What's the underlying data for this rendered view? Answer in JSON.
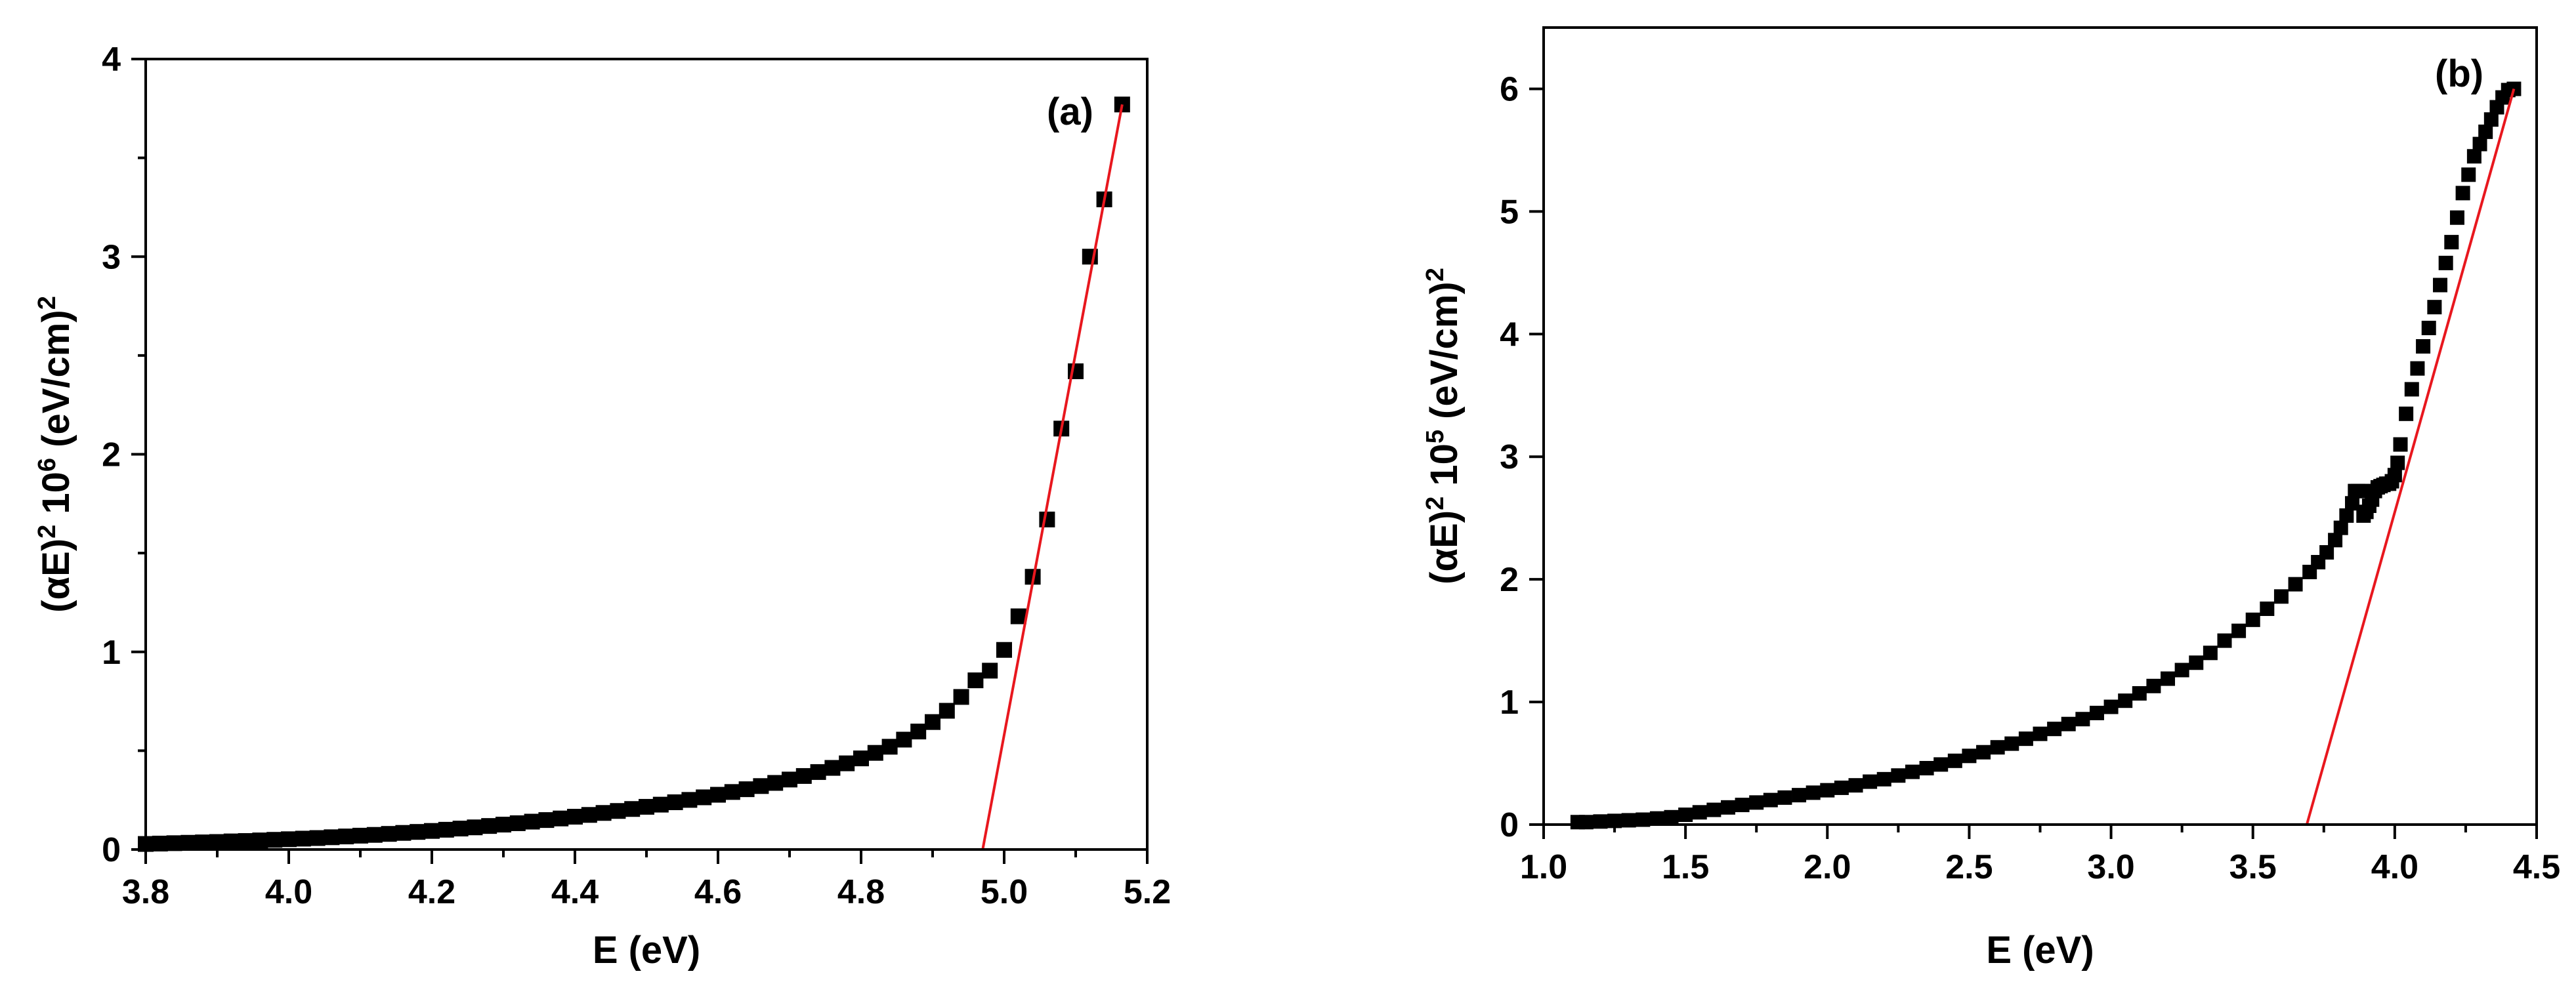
{
  "colors": {
    "marker": "#000000",
    "fit_line": "#e8171e",
    "axes": "#000000"
  },
  "chart_data": [
    {
      "type": "scatter",
      "panel_label": "(a)",
      "xlabel": "E (eV)",
      "ylabel_parts": [
        "(",
        "α",
        "E)",
        "2",
        " 10",
        "6",
        " (eV/cm)",
        "2"
      ],
      "xlim": [
        3.8,
        5.2
      ],
      "ylim": [
        0,
        4
      ],
      "xticks": [
        "3.8",
        "4.0",
        "4.2",
        "4.4",
        "4.6",
        "4.8",
        "5.0",
        "5.2"
      ],
      "yticks": [
        "0",
        "1",
        "2",
        "3",
        "4"
      ],
      "series": [
        {
          "name": "data",
          "x": [
            3.8,
            3.82,
            3.84,
            3.86,
            3.88,
            3.9,
            3.92,
            3.94,
            3.96,
            3.98,
            4.0,
            4.02,
            4.04,
            4.06,
            4.08,
            4.1,
            4.12,
            4.14,
            4.16,
            4.18,
            4.2,
            4.22,
            4.24,
            4.26,
            4.28,
            4.3,
            4.32,
            4.34,
            4.36,
            4.38,
            4.4,
            4.42,
            4.44,
            4.46,
            4.48,
            4.5,
            4.52,
            4.54,
            4.56,
            4.58,
            4.6,
            4.62,
            4.64,
            4.66,
            4.68,
            4.7,
            4.72,
            4.74,
            4.76,
            4.78,
            4.8,
            4.82,
            4.84,
            4.86,
            4.88,
            4.9,
            4.92,
            4.94,
            4.96,
            4.98,
            5.0,
            5.02,
            5.04,
            5.06,
            5.08,
            5.1,
            5.12,
            5.14,
            5.165
          ],
          "y": [
            0.028,
            0.03,
            0.032,
            0.034,
            0.036,
            0.038,
            0.041,
            0.043,
            0.046,
            0.049,
            0.052,
            0.055,
            0.058,
            0.062,
            0.066,
            0.07,
            0.074,
            0.079,
            0.084,
            0.089,
            0.094,
            0.1,
            0.106,
            0.112,
            0.119,
            0.126,
            0.133,
            0.141,
            0.149,
            0.157,
            0.166,
            0.175,
            0.185,
            0.195,
            0.205,
            0.216,
            0.227,
            0.239,
            0.251,
            0.264,
            0.277,
            0.291,
            0.305,
            0.321,
            0.337,
            0.354,
            0.372,
            0.392,
            0.413,
            0.436,
            0.461,
            0.489,
            0.52,
            0.556,
            0.597,
            0.645,
            0.702,
            0.772,
            0.856,
            0.905,
            1.01,
            1.18,
            1.38,
            1.67,
            2.13,
            2.42,
            3.0,
            3.29,
            3.77
          ]
        },
        {
          "name": "linear fit",
          "x": [
            4.97,
            5.165
          ],
          "y": [
            0,
            3.77
          ]
        }
      ]
    },
    {
      "type": "scatter",
      "panel_label": "(b)",
      "xlabel": "E (eV)",
      "ylabel_parts": [
        "(",
        "α",
        "E)",
        "2",
        " 10",
        "5",
        " (eV/cm)",
        "2"
      ],
      "xlim": [
        1.0,
        4.5
      ],
      "ylim": [
        0,
        6.5
      ],
      "xticks": [
        "1.0",
        "1.5",
        "2.0",
        "2.5",
        "3.0",
        "3.5",
        "4.0",
        "4.5"
      ],
      "yticks": [
        "0",
        "1",
        "2",
        "3",
        "4",
        "5",
        "6"
      ],
      "series": [
        {
          "name": "data",
          "x": [
            1.12,
            1.15,
            1.2,
            1.25,
            1.3,
            1.35,
            1.4,
            1.45,
            1.5,
            1.55,
            1.6,
            1.65,
            1.7,
            1.75,
            1.8,
            1.85,
            1.9,
            1.95,
            2.0,
            2.05,
            2.1,
            2.15,
            2.2,
            2.25,
            2.3,
            2.35,
            2.4,
            2.45,
            2.5,
            2.55,
            2.6,
            2.65,
            2.7,
            2.75,
            2.8,
            2.85,
            2.9,
            2.95,
            3.0,
            3.05,
            3.1,
            3.15,
            3.2,
            3.25,
            3.3,
            3.35,
            3.4,
            3.45,
            3.5,
            3.55,
            3.6,
            3.65,
            3.7,
            3.73,
            3.76,
            3.79,
            3.81,
            3.83,
            3.85,
            3.86,
            3.87,
            3.88,
            3.89,
            3.9,
            3.91,
            3.92,
            3.93,
            3.94,
            3.95,
            3.96,
            3.97,
            3.98,
            3.99,
            4.0,
            4.01,
            4.02,
            4.04,
            4.06,
            4.08,
            4.1,
            4.12,
            4.14,
            4.16,
            4.18,
            4.2,
            4.22,
            4.24,
            4.26,
            4.28,
            4.3,
            4.32,
            4.34,
            4.36,
            4.38,
            4.4,
            4.42
          ],
          "y": [
            0.02,
            0.02,
            0.025,
            0.03,
            0.035,
            0.04,
            0.05,
            0.06,
            0.08,
            0.1,
            0.12,
            0.14,
            0.16,
            0.18,
            0.2,
            0.22,
            0.24,
            0.26,
            0.28,
            0.3,
            0.32,
            0.35,
            0.37,
            0.4,
            0.43,
            0.46,
            0.49,
            0.52,
            0.56,
            0.59,
            0.63,
            0.66,
            0.7,
            0.74,
            0.78,
            0.82,
            0.86,
            0.91,
            0.96,
            1.01,
            1.07,
            1.13,
            1.19,
            1.26,
            1.32,
            1.4,
            1.5,
            1.58,
            1.67,
            1.76,
            1.86,
            1.96,
            2.06,
            2.14,
            2.22,
            2.32,
            2.42,
            2.52,
            2.62,
            2.72,
            2.72,
            2.72,
            2.52,
            2.55,
            2.6,
            2.65,
            2.72,
            2.75,
            2.76,
            2.77,
            2.78,
            2.78,
            2.8,
            2.85,
            2.95,
            3.1,
            3.35,
            3.55,
            3.72,
            3.9,
            4.05,
            4.22,
            4.4,
            4.58,
            4.75,
            4.95,
            5.15,
            5.3,
            5.45,
            5.55,
            5.65,
            5.75,
            5.85,
            5.93,
            5.99,
            6.0
          ]
        },
        {
          "name": "linear fit",
          "x": [
            3.69,
            4.42
          ],
          "y": [
            0,
            6.0
          ]
        }
      ]
    }
  ]
}
